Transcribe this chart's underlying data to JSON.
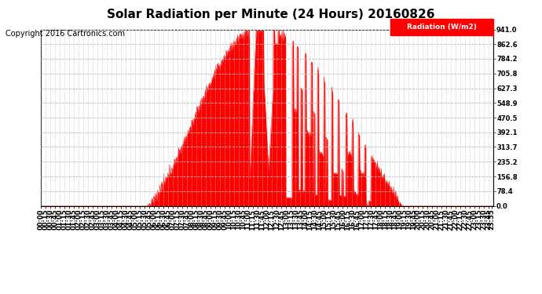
{
  "title": "Solar Radiation per Minute (24 Hours) 20160826",
  "copyright": "Copyright 2016 Cartronics.com",
  "legend_label": "Radiation (W/m2)",
  "y_ticks": [
    0.0,
    78.4,
    156.8,
    235.2,
    313.7,
    392.1,
    470.5,
    548.9,
    627.3,
    705.8,
    784.2,
    862.6,
    941.0
  ],
  "y_max": 941.0,
  "y_min": 0.0,
  "fill_color": "#FF0000",
  "line_color": "#FF0000",
  "background_color": "#FFFFFF",
  "grid_color": "#BBBBBB",
  "title_fontsize": 11,
  "copyright_fontsize": 7,
  "tick_label_fontsize": 6,
  "sunrise_minute": 335,
  "sunset_minute": 1155,
  "peak_minute": 690
}
